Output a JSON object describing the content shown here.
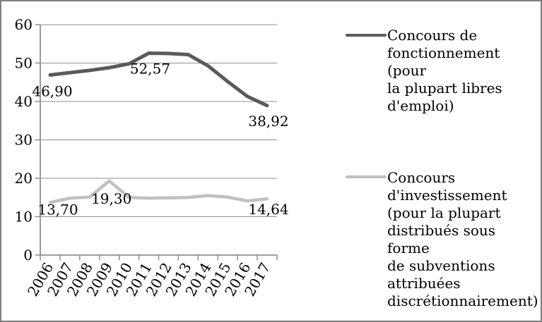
{
  "window": {
    "background": "#ffffff",
    "border_color": "#7f7f7f"
  },
  "chart_data": {
    "type": "line",
    "title": "",
    "xlabel": "",
    "ylabel": "",
    "categories": [
      "2006",
      "2007",
      "2008",
      "2009",
      "2010",
      "2011",
      "2012",
      "2013",
      "2014",
      "2015",
      "2016",
      "2017"
    ],
    "series": [
      {
        "name": "Concours de fonctionnement (pour la plupart libres d'emploi)",
        "color": "#5a5a5a",
        "stroke_width": 5,
        "values": [
          46.9,
          47.5,
          48.1,
          48.8,
          49.8,
          52.57,
          52.5,
          52.2,
          49.3,
          45.2,
          41.3,
          38.92
        ],
        "point_labels": {
          "0": "46,90",
          "5": "52,57",
          "11": "38,92"
        }
      },
      {
        "name": "Concours d'investissement (pour la plupart distribués sous forme de subventions attribuées discrétionnairement)",
        "color": "#c0c0c0",
        "stroke_width": 4.5,
        "values": [
          13.7,
          14.8,
          15.1,
          19.3,
          15.0,
          14.8,
          14.9,
          15.0,
          15.5,
          15.1,
          14.1,
          14.64
        ],
        "point_labels": {
          "0": "13,70",
          "3": "19,30",
          "11": "14,64"
        }
      }
    ],
    "ylim": [
      0,
      60
    ],
    "yticks": [
      0,
      10,
      20,
      30,
      40,
      50,
      60
    ],
    "grid": true,
    "legend_position": "right",
    "x_tick_label_rotation_deg": -60
  },
  "legend": {
    "items": [
      {
        "label": "Concours de\nfonctionnement (pour\nla plupart libres\nd'emploi)",
        "color": "#5a5a5a"
      },
      {
        "label": "Concours\nd'investissement\n(pour la plupart\ndistribués sous forme\nde subventions\nattribuées\ndiscrétionnairement)",
        "color": "#c0c0c0"
      }
    ]
  },
  "colors": {
    "gridline": "#8f8f8f",
    "axis": "#8f8f8f",
    "text": "#000000"
  }
}
